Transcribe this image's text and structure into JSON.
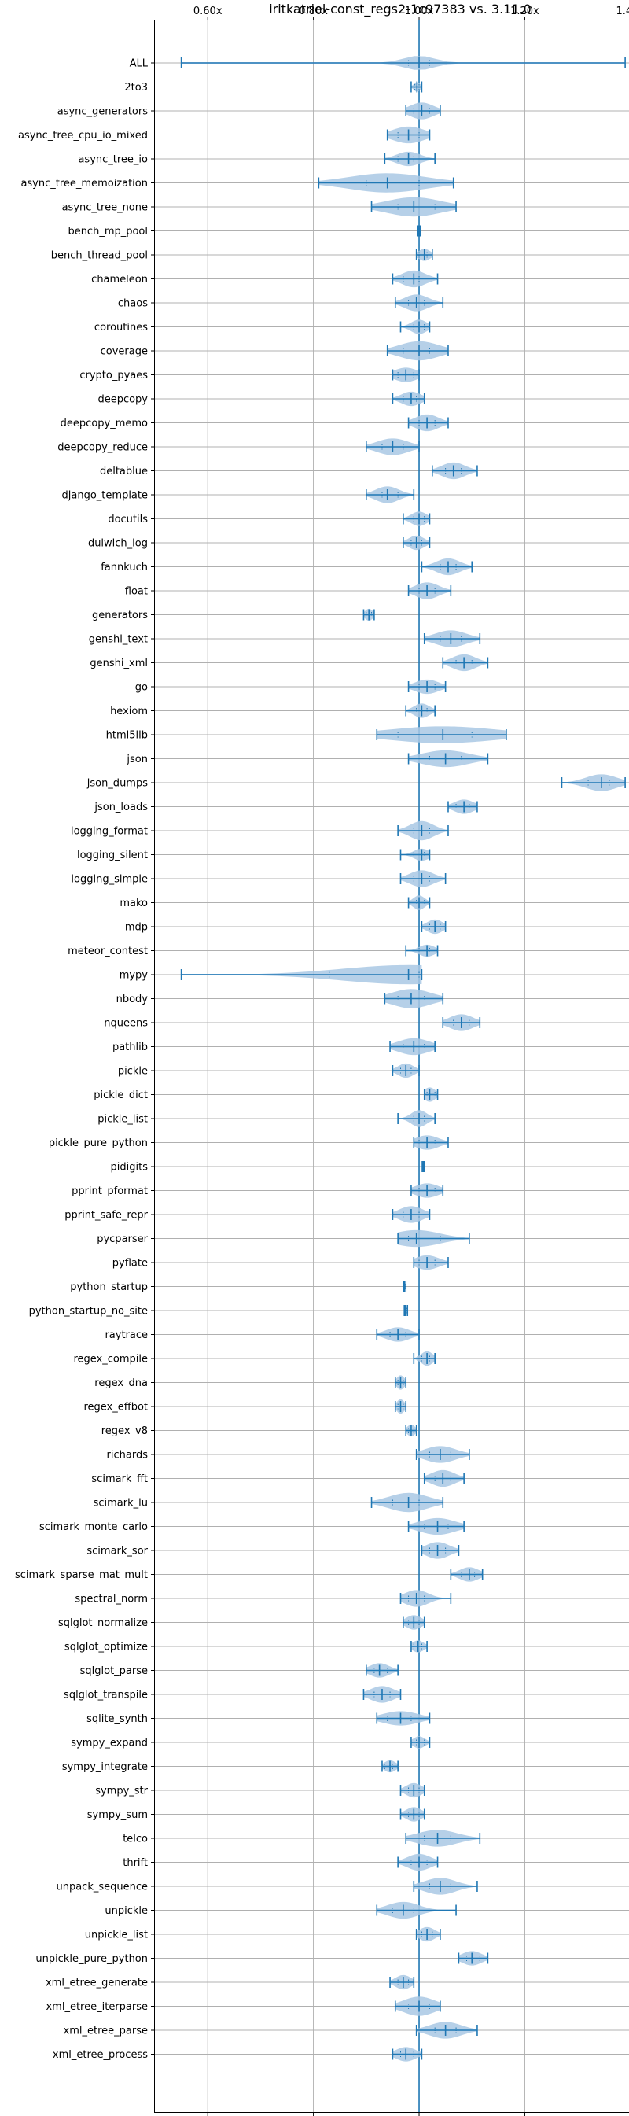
{
  "chart_data": {
    "type": "violin",
    "title": "iritkatriel-const_regs2-1c97383 vs. 3.11.0",
    "xlabel": "",
    "ylabel": "",
    "xlim": [
      0.5,
      1.43
    ],
    "xticks": [
      0.6,
      0.8,
      1.0,
      1.2,
      1.4
    ],
    "xtick_labels": [
      "0.60x",
      "0.80x",
      "1.00x",
      "1.20x",
      "1.40x"
    ],
    "reference_line": 1.0,
    "grid": true,
    "colors": {
      "violin": "#a9c8e4",
      "line": "#1f77b4"
    },
    "series": [
      {
        "name": "ALL",
        "min": 0.55,
        "q1": 0.98,
        "median": 1.0,
        "q3": 1.02,
        "max": 1.39,
        "width": 0.6
      },
      {
        "name": "2to3",
        "min": 0.985,
        "q1": 0.992,
        "median": 0.996,
        "q3": 1.0,
        "max": 1.005,
        "width": 0.4
      },
      {
        "name": "async_generators",
        "min": 0.975,
        "q1": 0.99,
        "median": 1.005,
        "q3": 1.02,
        "max": 1.04,
        "width": 0.7
      },
      {
        "name": "async_tree_cpu_io_mixed",
        "min": 0.94,
        "q1": 0.96,
        "median": 0.98,
        "q3": 1.0,
        "max": 1.02,
        "width": 0.7
      },
      {
        "name": "async_tree_io",
        "min": 0.935,
        "q1": 0.96,
        "median": 0.98,
        "q3": 0.99,
        "max": 1.03,
        "width": 0.6
      },
      {
        "name": "async_tree_memoization",
        "min": 0.81,
        "q1": 0.9,
        "median": 0.94,
        "q3": 1.0,
        "max": 1.065,
        "width": 0.8
      },
      {
        "name": "async_tree_none",
        "min": 0.91,
        "q1": 0.96,
        "median": 0.99,
        "q3": 1.03,
        "max": 1.07,
        "width": 0.8
      },
      {
        "name": "bench_mp_pool",
        "min": 0.998,
        "q1": 0.999,
        "median": 1.0,
        "q3": 1.001,
        "max": 1.002,
        "width": 0.4
      },
      {
        "name": "bench_thread_pool",
        "min": 0.995,
        "q1": 1.0,
        "median": 1.01,
        "q3": 1.015,
        "max": 1.025,
        "width": 0.5
      },
      {
        "name": "chameleon",
        "min": 0.95,
        "q1": 0.97,
        "median": 0.99,
        "q3": 1.0,
        "max": 1.035,
        "width": 0.7
      },
      {
        "name": "chaos",
        "min": 0.955,
        "q1": 0.98,
        "median": 0.995,
        "q3": 1.01,
        "max": 1.045,
        "width": 0.7
      },
      {
        "name": "coroutines",
        "min": 0.965,
        "q1": 0.99,
        "median": 1.0,
        "q3": 1.01,
        "max": 1.02,
        "width": 0.6
      },
      {
        "name": "coverage",
        "min": 0.94,
        "q1": 0.97,
        "median": 1.0,
        "q3": 1.02,
        "max": 1.055,
        "width": 0.8
      },
      {
        "name": "crypto_pyaes",
        "min": 0.95,
        "q1": 0.96,
        "median": 0.975,
        "q3": 0.99,
        "max": 1.0,
        "width": 0.6
      },
      {
        "name": "deepcopy",
        "min": 0.95,
        "q1": 0.97,
        "median": 0.985,
        "q3": 0.995,
        "max": 1.01,
        "width": 0.6
      },
      {
        "name": "deepcopy_memo",
        "min": 0.98,
        "q1": 1.0,
        "median": 1.015,
        "q3": 1.03,
        "max": 1.055,
        "width": 0.7
      },
      {
        "name": "deepcopy_reduce",
        "min": 0.9,
        "q1": 0.93,
        "median": 0.95,
        "q3": 0.97,
        "max": 1.0,
        "width": 0.7
      },
      {
        "name": "deltablue",
        "min": 1.025,
        "q1": 1.05,
        "median": 1.065,
        "q3": 1.08,
        "max": 1.11,
        "width": 0.7
      },
      {
        "name": "django_template",
        "min": 0.9,
        "q1": 0.93,
        "median": 0.94,
        "q3": 0.96,
        "max": 0.99,
        "width": 0.7
      },
      {
        "name": "docutils",
        "min": 0.97,
        "q1": 0.99,
        "median": 1.0,
        "q3": 1.01,
        "max": 1.02,
        "width": 0.6
      },
      {
        "name": "dulwich_log",
        "min": 0.97,
        "q1": 0.985,
        "median": 0.995,
        "q3": 1.005,
        "max": 1.02,
        "width": 0.6
      },
      {
        "name": "fannkuch",
        "min": 1.005,
        "q1": 1.04,
        "median": 1.055,
        "q3": 1.07,
        "max": 1.1,
        "width": 0.7
      },
      {
        "name": "float",
        "min": 0.98,
        "q1": 1.0,
        "median": 1.015,
        "q3": 1.03,
        "max": 1.06,
        "width": 0.7
      },
      {
        "name": "generators",
        "min": 0.895,
        "q1": 0.9,
        "median": 0.905,
        "q3": 0.91,
        "max": 0.915,
        "width": 0.5
      },
      {
        "name": "genshi_text",
        "min": 1.01,
        "q1": 1.04,
        "median": 1.06,
        "q3": 1.08,
        "max": 1.115,
        "width": 0.7
      },
      {
        "name": "genshi_xml",
        "min": 1.045,
        "q1": 1.07,
        "median": 1.085,
        "q3": 1.1,
        "max": 1.13,
        "width": 0.7
      },
      {
        "name": "go",
        "min": 0.98,
        "q1": 1.0,
        "median": 1.015,
        "q3": 1.03,
        "max": 1.05,
        "width": 0.6
      },
      {
        "name": "hexiom",
        "min": 0.975,
        "q1": 0.995,
        "median": 1.005,
        "q3": 1.015,
        "max": 1.03,
        "width": 0.6
      },
      {
        "name": "html5lib",
        "min": 0.92,
        "q1": 0.96,
        "median": 1.045,
        "q3": 1.1,
        "max": 1.165,
        "width": 0.7
      },
      {
        "name": "json",
        "min": 0.98,
        "q1": 1.02,
        "median": 1.05,
        "q3": 1.08,
        "max": 1.13,
        "width": 0.7
      },
      {
        "name": "json_dumps",
        "min": 1.27,
        "q1": 1.32,
        "median": 1.345,
        "q3": 1.36,
        "max": 1.39,
        "width": 0.7
      },
      {
        "name": "json_loads",
        "min": 1.055,
        "q1": 1.07,
        "median": 1.085,
        "q3": 1.095,
        "max": 1.11,
        "width": 0.6
      },
      {
        "name": "logging_format",
        "min": 0.96,
        "q1": 0.99,
        "median": 1.005,
        "q3": 1.02,
        "max": 1.055,
        "width": 0.8
      },
      {
        "name": "logging_silent",
        "min": 0.965,
        "q1": 0.99,
        "median": 1.005,
        "q3": 1.01,
        "max": 1.02,
        "width": 0.5
      },
      {
        "name": "logging_simple",
        "min": 0.965,
        "q1": 0.99,
        "median": 1.005,
        "q3": 1.02,
        "max": 1.05,
        "width": 0.7
      },
      {
        "name": "mako",
        "min": 0.98,
        "q1": 0.995,
        "median": 1.0,
        "q3": 1.01,
        "max": 1.02,
        "width": 0.6
      },
      {
        "name": "mdp",
        "min": 1.005,
        "q1": 1.02,
        "median": 1.03,
        "q3": 1.04,
        "max": 1.05,
        "width": 0.6
      },
      {
        "name": "meteor_contest",
        "min": 0.975,
        "q1": 1.0,
        "median": 1.015,
        "q3": 1.02,
        "max": 1.035,
        "width": 0.5
      },
      {
        "name": "mypy",
        "min": 0.55,
        "q1": 0.83,
        "median": 0.98,
        "q3": 1.0,
        "max": 1.005,
        "width": 0.8
      },
      {
        "name": "nbody",
        "min": 0.935,
        "q1": 0.96,
        "median": 0.985,
        "q3": 1.01,
        "max": 1.045,
        "width": 0.8
      },
      {
        "name": "nqueens",
        "min": 1.045,
        "q1": 1.065,
        "median": 1.08,
        "q3": 1.095,
        "max": 1.115,
        "width": 0.7
      },
      {
        "name": "pathlib",
        "min": 0.945,
        "q1": 0.97,
        "median": 0.99,
        "q3": 1.01,
        "max": 1.03,
        "width": 0.7
      },
      {
        "name": "pickle",
        "min": 0.95,
        "q1": 0.965,
        "median": 0.975,
        "q3": 0.985,
        "max": 1.0,
        "width": 0.6
      },
      {
        "name": "pickle_dict",
        "min": 1.01,
        "q1": 1.015,
        "median": 1.02,
        "q3": 1.03,
        "max": 1.035,
        "width": 0.6
      },
      {
        "name": "pickle_list",
        "min": 0.96,
        "q1": 0.99,
        "median": 1.0,
        "q3": 1.01,
        "max": 1.03,
        "width": 0.7
      },
      {
        "name": "pickle_pure_python",
        "min": 0.99,
        "q1": 1.0,
        "median": 1.015,
        "q3": 1.03,
        "max": 1.055,
        "width": 0.6
      },
      {
        "name": "pidigits",
        "min": 1.006,
        "q1": 1.007,
        "median": 1.008,
        "q3": 1.009,
        "max": 1.01,
        "width": 0.4
      },
      {
        "name": "pprint_pformat",
        "min": 0.985,
        "q1": 1.0,
        "median": 1.015,
        "q3": 1.03,
        "max": 1.045,
        "width": 0.6
      },
      {
        "name": "pprint_safe_repr",
        "min": 0.95,
        "q1": 0.97,
        "median": 0.985,
        "q3": 1.0,
        "max": 1.02,
        "width": 0.7
      },
      {
        "name": "pycparser",
        "min": 0.96,
        "q1": 0.98,
        "median": 0.995,
        "q3": 1.04,
        "max": 1.095,
        "width": 0.7
      },
      {
        "name": "pyflate",
        "min": 0.99,
        "q1": 1.0,
        "median": 1.015,
        "q3": 1.03,
        "max": 1.055,
        "width": 0.6
      },
      {
        "name": "python_startup",
        "min": 0.97,
        "q1": 0.971,
        "median": 0.972,
        "q3": 0.973,
        "max": 0.975,
        "width": 0.4
      },
      {
        "name": "python_startup_no_site",
        "min": 0.972,
        "q1": 0.973,
        "median": 0.974,
        "q3": 0.976,
        "max": 0.978,
        "width": 0.4
      },
      {
        "name": "raytrace",
        "min": 0.92,
        "q1": 0.945,
        "median": 0.96,
        "q3": 0.975,
        "max": 1.0,
        "width": 0.6
      },
      {
        "name": "regex_compile",
        "min": 0.99,
        "q1": 1.005,
        "median": 1.015,
        "q3": 1.02,
        "max": 1.03,
        "width": 0.6
      },
      {
        "name": "regex_dna",
        "min": 0.955,
        "q1": 0.96,
        "median": 0.965,
        "q3": 0.97,
        "max": 0.975,
        "width": 0.6
      },
      {
        "name": "regex_effbot",
        "min": 0.955,
        "q1": 0.96,
        "median": 0.965,
        "q3": 0.97,
        "max": 0.975,
        "width": 0.6
      },
      {
        "name": "regex_v8",
        "min": 0.975,
        "q1": 0.98,
        "median": 0.985,
        "q3": 0.99,
        "max": 0.995,
        "width": 0.5
      },
      {
        "name": "richards",
        "min": 0.995,
        "q1": 1.02,
        "median": 1.04,
        "q3": 1.06,
        "max": 1.095,
        "width": 0.7
      },
      {
        "name": "scimark_fft",
        "min": 1.01,
        "q1": 1.03,
        "median": 1.045,
        "q3": 1.06,
        "max": 1.085,
        "width": 0.7
      },
      {
        "name": "scimark_lu",
        "min": 0.91,
        "q1": 0.95,
        "median": 0.98,
        "q3": 1.0,
        "max": 1.045,
        "width": 0.8
      },
      {
        "name": "scimark_monte_carlo",
        "min": 0.98,
        "q1": 1.01,
        "median": 1.035,
        "q3": 1.055,
        "max": 1.085,
        "width": 0.7
      },
      {
        "name": "scimark_sor",
        "min": 1.005,
        "q1": 1.02,
        "median": 1.035,
        "q3": 1.05,
        "max": 1.075,
        "width": 0.7
      },
      {
        "name": "scimark_sparse_mat_mult",
        "min": 1.06,
        "q1": 1.08,
        "median": 1.095,
        "q3": 1.105,
        "max": 1.12,
        "width": 0.6
      },
      {
        "name": "spectral_norm",
        "min": 0.965,
        "q1": 0.98,
        "median": 0.995,
        "q3": 1.01,
        "max": 1.06,
        "width": 0.7
      },
      {
        "name": "sqlglot_normalize",
        "min": 0.97,
        "q1": 0.98,
        "median": 0.99,
        "q3": 1.0,
        "max": 1.01,
        "width": 0.6
      },
      {
        "name": "sqlglot_optimize",
        "min": 0.985,
        "q1": 0.99,
        "median": 0.998,
        "q3": 1.005,
        "max": 1.015,
        "width": 0.5
      },
      {
        "name": "sqlglot_parse",
        "min": 0.9,
        "q1": 0.915,
        "median": 0.925,
        "q3": 0.94,
        "max": 0.96,
        "width": 0.6
      },
      {
        "name": "sqlglot_transpile",
        "min": 0.895,
        "q1": 0.915,
        "median": 0.93,
        "q3": 0.945,
        "max": 0.965,
        "width": 0.7
      },
      {
        "name": "sqlite_synth",
        "min": 0.92,
        "q1": 0.94,
        "median": 0.965,
        "q3": 0.985,
        "max": 1.02,
        "width": 0.6
      },
      {
        "name": "sympy_expand",
        "min": 0.985,
        "q1": 0.995,
        "median": 1.0,
        "q3": 1.01,
        "max": 1.02,
        "width": 0.5
      },
      {
        "name": "sympy_integrate",
        "min": 0.93,
        "q1": 0.935,
        "median": 0.945,
        "q3": 0.95,
        "max": 0.96,
        "width": 0.5
      },
      {
        "name": "sympy_str",
        "min": 0.965,
        "q1": 0.98,
        "median": 0.99,
        "q3": 1.0,
        "max": 1.01,
        "width": 0.6
      },
      {
        "name": "sympy_sum",
        "min": 0.965,
        "q1": 0.98,
        "median": 0.99,
        "q3": 1.0,
        "max": 1.01,
        "width": 0.6
      },
      {
        "name": "telco",
        "min": 0.975,
        "q1": 1.01,
        "median": 1.035,
        "q3": 1.06,
        "max": 1.115,
        "width": 0.7
      },
      {
        "name": "thrift",
        "min": 0.96,
        "q1": 0.985,
        "median": 1.0,
        "q3": 1.015,
        "max": 1.035,
        "width": 0.7
      },
      {
        "name": "unpack_sequence",
        "min": 0.99,
        "q1": 1.02,
        "median": 1.04,
        "q3": 1.06,
        "max": 1.11,
        "width": 0.7
      },
      {
        "name": "unpickle",
        "min": 0.92,
        "q1": 0.95,
        "median": 0.97,
        "q3": 0.99,
        "max": 1.07,
        "width": 0.7
      },
      {
        "name": "unpickle_list",
        "min": 0.995,
        "q1": 1.005,
        "median": 1.015,
        "q3": 1.025,
        "max": 1.04,
        "width": 0.6
      },
      {
        "name": "unpickle_pure_python",
        "min": 1.075,
        "q1": 1.09,
        "median": 1.1,
        "q3": 1.115,
        "max": 1.13,
        "width": 0.6
      },
      {
        "name": "xml_etree_generate",
        "min": 0.945,
        "q1": 0.96,
        "median": 0.97,
        "q3": 0.98,
        "max": 0.99,
        "width": 0.6
      },
      {
        "name": "xml_etree_iterparse",
        "min": 0.955,
        "q1": 0.98,
        "median": 1.0,
        "q3": 1.02,
        "max": 1.04,
        "width": 0.8
      },
      {
        "name": "xml_etree_parse",
        "min": 0.995,
        "q1": 1.03,
        "median": 1.05,
        "q3": 1.07,
        "max": 1.11,
        "width": 0.7
      },
      {
        "name": "xml_etree_process",
        "min": 0.95,
        "q1": 0.965,
        "median": 0.975,
        "q3": 0.99,
        "max": 1.005,
        "width": 0.6
      }
    ]
  }
}
